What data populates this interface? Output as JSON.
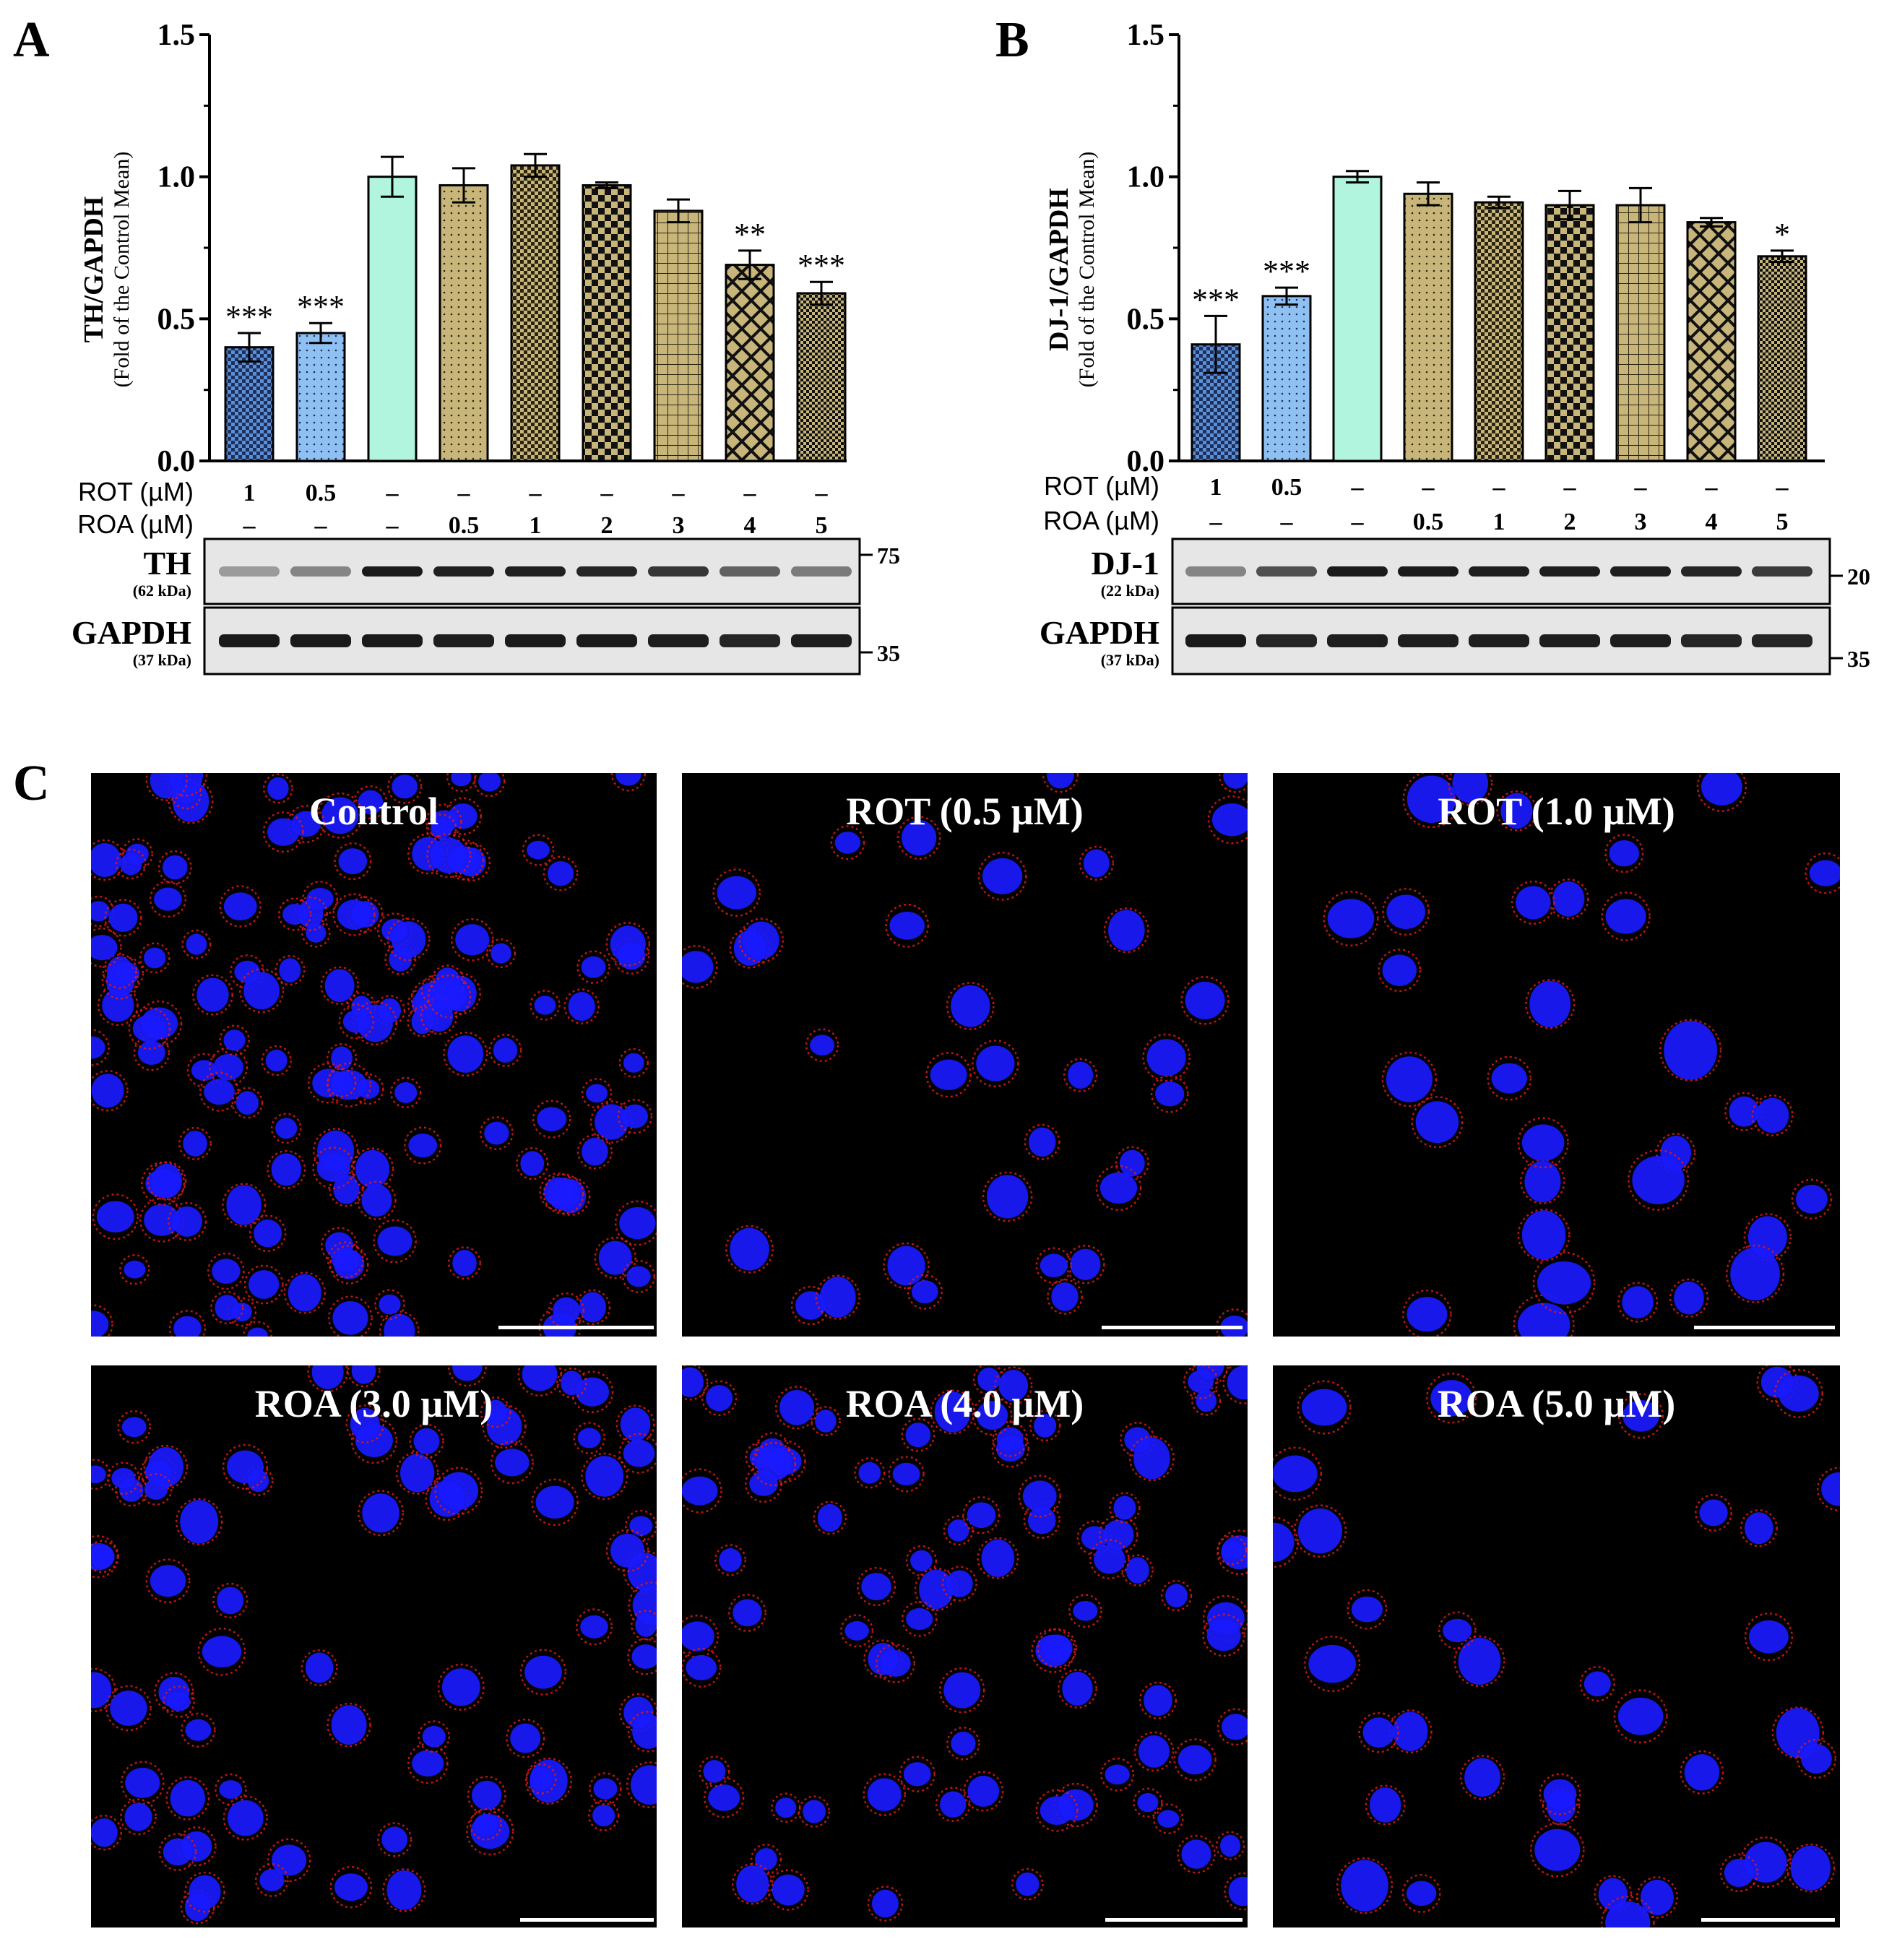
{
  "panel_labels": {
    "a": "A",
    "b": "B",
    "c": "C"
  },
  "colors": {
    "rot_1": "#5b8fd6",
    "rot_05": "#8fc0f2",
    "control": "#b2f5df",
    "roa": "#c7b57a",
    "nuclei": "#1a1aff",
    "membrane": "#e01818"
  },
  "chart_data": [
    {
      "type": "bar",
      "panel": "A",
      "ylabel": "TH/GAPDH",
      "ylabel2": "(Fold of the Control Mean)",
      "ylim": [
        0,
        1.5
      ],
      "yticks": [
        "0.0",
        "0.5",
        "1.0",
        "1.5"
      ],
      "categories": [
        "ROT 1",
        "ROT 0.5",
        "Control",
        "ROA 0.5",
        "ROA 1",
        "ROA 2",
        "ROA 3",
        "ROA 4",
        "ROA 5"
      ],
      "values": [
        0.4,
        0.45,
        1.0,
        0.97,
        1.04,
        0.97,
        0.88,
        0.69,
        0.59
      ],
      "errors": [
        0.05,
        0.035,
        0.07,
        0.06,
        0.04,
        0.01,
        0.04,
        0.05,
        0.04
      ],
      "significance": [
        "***",
        "***",
        "",
        "",
        "",
        "",
        "",
        "**",
        "***"
      ],
      "patterns": [
        "checker-small",
        "dots",
        "none",
        "dots",
        "checker-small",
        "checker-large",
        "grid",
        "diamond",
        "dense"
      ],
      "rot_label": "ROT (µM)",
      "roa_label": "ROA (µM)",
      "rot_row": [
        "1",
        "0.5",
        "–",
        "–",
        "–",
        "–",
        "–",
        "–",
        "–"
      ],
      "roa_row": [
        "–",
        "–",
        "–",
        "0.5",
        "1",
        "2",
        "3",
        "4",
        "5"
      ],
      "blot": {
        "protein": "TH",
        "protein_kda": "(62 kDa)",
        "protein_intensity": [
          0.35,
          0.45,
          0.95,
          0.92,
          0.92,
          0.9,
          0.82,
          0.62,
          0.5
        ],
        "protein_marker": "75",
        "loading": "GAPDH",
        "loading_kda": "(37 kDa)",
        "loading_intensity": [
          0.95,
          0.95,
          0.95,
          0.93,
          0.95,
          0.95,
          0.93,
          0.9,
          0.93
        ],
        "loading_marker": "35"
      }
    },
    {
      "type": "bar",
      "panel": "B",
      "ylabel": "DJ-1/GAPDH",
      "ylabel2": "(Fold of the Control Mean)",
      "ylim": [
        0,
        1.5
      ],
      "yticks": [
        "0.0",
        "0.5",
        "1.0",
        "1.5"
      ],
      "categories": [
        "ROT 1",
        "ROT 0.5",
        "Control",
        "ROA 0.5",
        "ROA 1",
        "ROA 2",
        "ROA 3",
        "ROA 4",
        "ROA 5"
      ],
      "values": [
        0.41,
        0.58,
        1.0,
        0.94,
        0.91,
        0.9,
        0.9,
        0.84,
        0.72
      ],
      "errors": [
        0.1,
        0.03,
        0.02,
        0.04,
        0.02,
        0.05,
        0.06,
        0.015,
        0.02
      ],
      "significance": [
        "***",
        "***",
        "",
        "",
        "",
        "",
        "",
        "",
        "*"
      ],
      "patterns": [
        "checker-small",
        "dots",
        "none",
        "dots",
        "checker-small",
        "checker-large",
        "grid",
        "diamond",
        "dense"
      ],
      "rot_label": "ROT (µM)",
      "roa_label": "ROA (µM)",
      "rot_row": [
        "1",
        "0.5",
        "–",
        "–",
        "–",
        "–",
        "–",
        "–",
        "–"
      ],
      "roa_row": [
        "–",
        "–",
        "–",
        "0.5",
        "1",
        "2",
        "3",
        "4",
        "5"
      ],
      "blot": {
        "protein": "DJ-1",
        "protein_kda": "(22 kDa)",
        "protein_intensity": [
          0.45,
          0.7,
          0.95,
          0.95,
          0.93,
          0.93,
          0.93,
          0.9,
          0.8
        ],
        "protein_marker": "20",
        "loading": "GAPDH",
        "loading_kda": "(37 kDa)",
        "loading_intensity": [
          0.95,
          0.9,
          0.93,
          0.93,
          0.93,
          0.93,
          0.93,
          0.9,
          0.9
        ],
        "loading_marker": "35"
      }
    }
  ],
  "microscopy": [
    {
      "title": "Control",
      "density": 140,
      "size": 1.0
    },
    {
      "title": "ROT (0.5 µM)",
      "density": 34,
      "size": 1.15
    },
    {
      "title": "ROT (1.0 µM)",
      "density": 32,
      "size": 1.45
    },
    {
      "title": "ROA (3.0 µM)",
      "density": 80,
      "size": 1.05
    },
    {
      "title": "ROA (4.0 µM)",
      "density": 85,
      "size": 1.0
    },
    {
      "title": "ROA (5.0 µM)",
      "density": 36,
      "size": 1.3
    }
  ]
}
